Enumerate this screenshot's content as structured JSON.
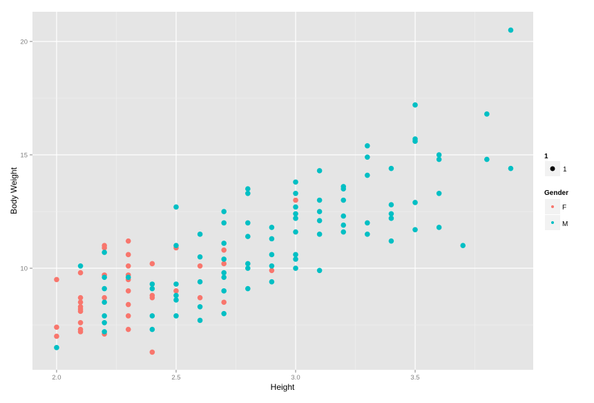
{
  "chart_data": {
    "type": "scatter",
    "title": "",
    "xlabel": "Height",
    "ylabel": "Body Weight",
    "xlim": [
      1.899,
      3.994
    ],
    "ylim": [
      5.52,
      21.31
    ],
    "xticks": [
      2.0,
      2.5,
      3.0,
      3.5
    ],
    "xtick_labels": [
      "2.0",
      "2.5",
      "3.0",
      "3.5"
    ],
    "yticks": [
      10,
      15,
      20
    ],
    "ytick_labels": [
      "10",
      "15",
      "20"
    ],
    "grid": true,
    "legend_position": "right",
    "legends": [
      {
        "title": "1",
        "entries": [
          {
            "label": "1",
            "color": "#000000"
          }
        ]
      },
      {
        "title": "Gender",
        "entries": [
          {
            "label": "F",
            "color": "#F8766D"
          },
          {
            "label": "M",
            "color": "#00BFC4"
          }
        ]
      }
    ],
    "series": [
      {
        "name": "F",
        "color": "#F8766D",
        "points": [
          [
            2.0,
            9.5
          ],
          [
            2.0,
            7.4
          ],
          [
            2.0,
            7.0
          ],
          [
            2.1,
            9.8
          ],
          [
            2.1,
            8.7
          ],
          [
            2.1,
            8.5
          ],
          [
            2.1,
            8.3
          ],
          [
            2.1,
            8.2
          ],
          [
            2.1,
            8.1
          ],
          [
            2.1,
            7.6
          ],
          [
            2.1,
            7.3
          ],
          [
            2.1,
            7.2
          ],
          [
            2.2,
            11.0
          ],
          [
            2.2,
            10.9
          ],
          [
            2.2,
            9.7
          ],
          [
            2.2,
            8.7
          ],
          [
            2.2,
            7.1
          ],
          [
            2.3,
            11.2
          ],
          [
            2.3,
            10.6
          ],
          [
            2.3,
            10.1
          ],
          [
            2.3,
            9.7
          ],
          [
            2.3,
            9.5
          ],
          [
            2.3,
            9.0
          ],
          [
            2.3,
            8.4
          ],
          [
            2.3,
            7.9
          ],
          [
            2.3,
            7.3
          ],
          [
            2.4,
            10.2
          ],
          [
            2.4,
            8.8
          ],
          [
            2.4,
            8.7
          ],
          [
            2.4,
            6.3
          ],
          [
            2.5,
            10.9
          ],
          [
            2.5,
            9.0
          ],
          [
            2.6,
            10.1
          ],
          [
            2.6,
            8.7
          ],
          [
            2.7,
            10.8
          ],
          [
            2.7,
            10.2
          ],
          [
            2.7,
            8.5
          ],
          [
            2.9,
            9.9
          ],
          [
            3.0,
            13.0
          ]
        ]
      },
      {
        "name": "M",
        "color": "#00BFC4",
        "points": [
          [
            2.0,
            6.5
          ],
          [
            2.1,
            10.1
          ],
          [
            2.2,
            10.7
          ],
          [
            2.2,
            9.6
          ],
          [
            2.2,
            9.1
          ],
          [
            2.2,
            8.5
          ],
          [
            2.2,
            7.9
          ],
          [
            2.2,
            7.6
          ],
          [
            2.2,
            7.2
          ],
          [
            2.3,
            9.6
          ],
          [
            2.4,
            9.3
          ],
          [
            2.4,
            9.1
          ],
          [
            2.4,
            7.9
          ],
          [
            2.4,
            7.3
          ],
          [
            2.5,
            12.7
          ],
          [
            2.5,
            11.0
          ],
          [
            2.5,
            9.3
          ],
          [
            2.5,
            8.8
          ],
          [
            2.5,
            8.6
          ],
          [
            2.5,
            7.9
          ],
          [
            2.6,
            11.5
          ],
          [
            2.6,
            10.5
          ],
          [
            2.6,
            9.4
          ],
          [
            2.6,
            8.3
          ],
          [
            2.6,
            7.7
          ],
          [
            2.7,
            12.5
          ],
          [
            2.7,
            12.0
          ],
          [
            2.7,
            11.1
          ],
          [
            2.7,
            10.4
          ],
          [
            2.7,
            9.8
          ],
          [
            2.7,
            9.6
          ],
          [
            2.7,
            9.0
          ],
          [
            2.7,
            8.0
          ],
          [
            2.8,
            13.5
          ],
          [
            2.8,
            13.3
          ],
          [
            2.8,
            12.0
          ],
          [
            2.8,
            11.4
          ],
          [
            2.8,
            10.2
          ],
          [
            2.8,
            10.0
          ],
          [
            2.8,
            9.1
          ],
          [
            2.9,
            11.8
          ],
          [
            2.9,
            11.3
          ],
          [
            2.9,
            10.6
          ],
          [
            2.9,
            10.1
          ],
          [
            2.9,
            9.4
          ],
          [
            3.0,
            13.8
          ],
          [
            3.0,
            13.3
          ],
          [
            3.0,
            12.7
          ],
          [
            3.0,
            12.4
          ],
          [
            3.0,
            12.2
          ],
          [
            3.0,
            11.6
          ],
          [
            3.0,
            10.6
          ],
          [
            3.0,
            10.4
          ],
          [
            3.0,
            10.0
          ],
          [
            3.1,
            14.3
          ],
          [
            3.1,
            13.0
          ],
          [
            3.1,
            12.5
          ],
          [
            3.1,
            12.1
          ],
          [
            3.1,
            11.5
          ],
          [
            3.1,
            9.9
          ],
          [
            3.2,
            13.6
          ],
          [
            3.2,
            13.5
          ],
          [
            3.2,
            13.0
          ],
          [
            3.2,
            12.3
          ],
          [
            3.2,
            11.9
          ],
          [
            3.2,
            11.6
          ],
          [
            3.3,
            15.4
          ],
          [
            3.3,
            14.9
          ],
          [
            3.3,
            14.1
          ],
          [
            3.3,
            12.0
          ],
          [
            3.3,
            11.5
          ],
          [
            3.4,
            14.4
          ],
          [
            3.4,
            12.8
          ],
          [
            3.4,
            12.4
          ],
          [
            3.4,
            12.2
          ],
          [
            3.4,
            11.2
          ],
          [
            3.5,
            17.2
          ],
          [
            3.5,
            15.7
          ],
          [
            3.5,
            15.6
          ],
          [
            3.5,
            12.9
          ],
          [
            3.5,
            11.7
          ],
          [
            3.6,
            15.0
          ],
          [
            3.6,
            14.8
          ],
          [
            3.6,
            13.3
          ],
          [
            3.6,
            11.8
          ],
          [
            3.7,
            11.0
          ],
          [
            3.8,
            16.8
          ],
          [
            3.8,
            14.8
          ],
          [
            3.9,
            20.5
          ],
          [
            3.9,
            14.4
          ]
        ]
      }
    ]
  }
}
